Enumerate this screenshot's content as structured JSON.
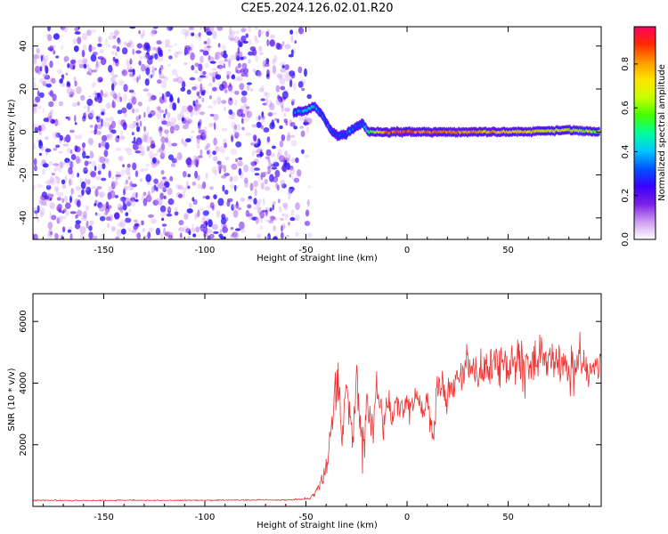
{
  "title": "C2E5.2024.126.02.01.R20",
  "chart_data": [
    {
      "type": "heatmap",
      "xlabel": "Height of straight line (km)",
      "ylabel": "Frequency (Hz)",
      "xlim": [
        -185,
        96
      ],
      "ylim": [
        -50,
        49
      ],
      "xticks": [
        -150,
        -100,
        -50,
        0,
        50
      ],
      "yticks": [
        -40,
        -20,
        0,
        20,
        40
      ],
      "colorbar": {
        "label": "Normalized spectral amplitude",
        "range": [
          0,
          0.97
        ],
        "ticks": [
          0.0,
          0.2,
          0.4,
          0.6,
          0.8
        ],
        "colors": [
          "#ffffff",
          "#cf9bf2",
          "#7a1fe6",
          "#3a00ff",
          "#0055ff",
          "#00c8ff",
          "#00ff9a",
          "#44ff00",
          "#c8ff00",
          "#ffe600",
          "#ff9a00",
          "#ff2a00",
          "#ff0060"
        ]
      },
      "noise_region": {
        "x": [
          -185,
          -48
        ],
        "y": [
          -50,
          49
        ],
        "typical_amplitude": 0.1
      },
      "signal_trace": {
        "x": [
          -56,
          -50,
          -46,
          -42,
          -38,
          -34,
          -30,
          -26,
          -22,
          -19,
          -15,
          -10,
          0,
          20,
          40,
          60,
          80,
          95
        ],
        "y": [
          9,
          10,
          12,
          8,
          1,
          -2,
          -1,
          2,
          4,
          0,
          0,
          0,
          0,
          0,
          0,
          0,
          1,
          0
        ],
        "amplitude": [
          0.35,
          0.4,
          0.45,
          0.35,
          0.3,
          0.25,
          0.3,
          0.35,
          0.3,
          0.5,
          0.7,
          0.85,
          0.9,
          0.85,
          0.8,
          0.75,
          0.7,
          0.6
        ]
      }
    },
    {
      "type": "line",
      "xlabel": "Height of straight line (km)",
      "ylabel": "SNR (10 * v/v)",
      "xlim": [
        -185,
        96
      ],
      "ylim": [
        0,
        6900
      ],
      "xticks": [
        -150,
        -100,
        -50,
        0,
        50
      ],
      "yticks": [
        2000,
        4000,
        6000
      ],
      "color": "#ee3333",
      "x": [
        -185,
        -160,
        -140,
        -120,
        -100,
        -80,
        -60,
        -48,
        -44,
        -40,
        -37,
        -35,
        -32,
        -30,
        -27,
        -25,
        -22,
        -20,
        -17,
        -15,
        -12,
        -10,
        -7,
        -5,
        -2,
        0,
        3,
        5,
        8,
        10,
        13,
        15,
        20,
        25,
        30,
        35,
        40,
        45,
        50,
        55,
        60,
        65,
        70,
        75,
        80,
        85,
        90,
        95
      ],
      "values": [
        200,
        190,
        200,
        195,
        200,
        205,
        210,
        250,
        600,
        1200,
        2600,
        4200,
        2400,
        3800,
        2000,
        4500,
        1800,
        3200,
        2600,
        3900,
        2500,
        3400,
        2900,
        3500,
        3000,
        3300,
        3400,
        3600,
        3000,
        3500,
        2000,
        4000,
        3700,
        4100,
        4600,
        4200,
        4500,
        4800,
        4400,
        4700,
        4600,
        4900,
        4500,
        4800,
        4400,
        4700,
        4300,
        4600
      ],
      "noise_amplitude": [
        30,
        30,
        30,
        30,
        30,
        30,
        30,
        60,
        250,
        500,
        900,
        1400,
        1300,
        1400,
        1300,
        1300,
        1200,
        1200,
        1000,
        1000,
        900,
        900,
        800,
        800,
        700,
        700,
        700,
        700,
        700,
        700,
        600,
        800,
        900,
        900,
        1000,
        1000,
        1100,
        1100,
        1100,
        1100,
        1100,
        1100,
        1100,
        1100,
        1100,
        1100,
        1100,
        1100
      ]
    }
  ]
}
